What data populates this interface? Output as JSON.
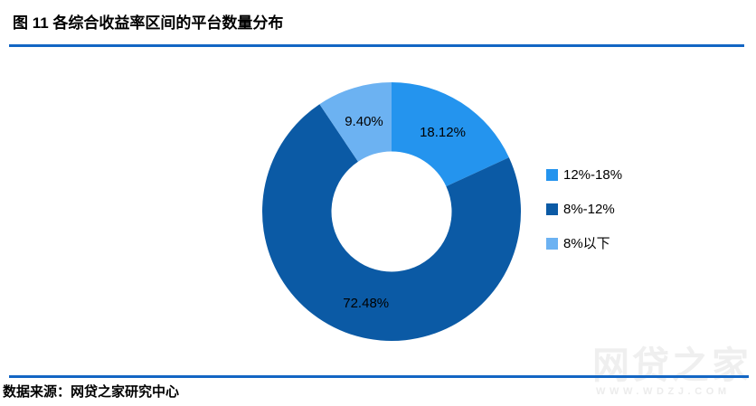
{
  "figure": {
    "title": "图 11  各综合收益率区间的平台数量分布",
    "source": "数据来源：网贷之家研究中心"
  },
  "watermark": {
    "brand": "网贷之家",
    "url": "WWW.WDZJ.COM"
  },
  "colors": {
    "rule": "#1366c4",
    "slice_label": "#000000",
    "watermark": "#efefef"
  },
  "chart_data": {
    "type": "pie",
    "subtype": "donut",
    "title": "图 11 各综合收益率区间的平台数量分布",
    "categories": [
      "12%-18%",
      "8%-12%",
      "8%以下"
    ],
    "values": [
      18.12,
      72.48,
      9.4
    ],
    "labels": [
      "18.12%",
      "72.48%",
      "9.40%"
    ],
    "colors": [
      "#2494ee",
      "#0b5aa5",
      "#6cb2f2"
    ],
    "start_angle_deg": 0,
    "direction": "clockwise",
    "inner_radius_ratio": 0.465,
    "legend_position": "right",
    "grid": false
  },
  "legend": {
    "items": [
      {
        "label": "12%-18%",
        "color": "#2494ee"
      },
      {
        "label": "8%-12%",
        "color": "#0b5aa5"
      },
      {
        "label": "8%以下",
        "color": "#6cb2f2"
      }
    ]
  }
}
